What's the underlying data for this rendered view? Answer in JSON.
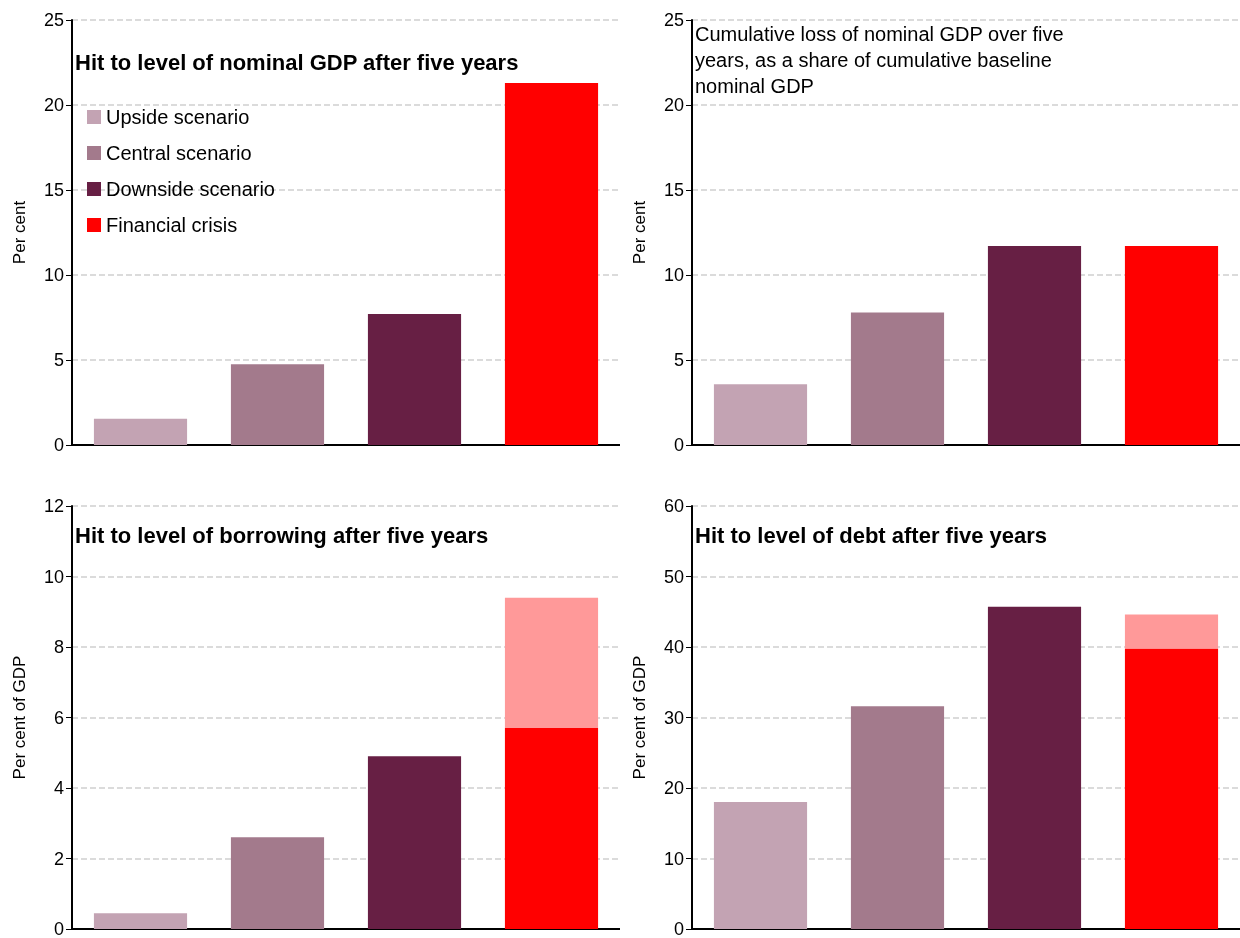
{
  "chart_data": [
    {
      "type": "bar",
      "title": "Hit to level of nominal GDP after five years",
      "ylabel": "Per cent",
      "categories": [
        null,
        null,
        null,
        null
      ],
      "stacked": true,
      "legend": "top left",
      "grid": "y",
      "ylim": [
        0,
        25
      ],
      "yticks": [
        0,
        5,
        10,
        15,
        20,
        25
      ],
      "series": [
        {
          "name": "Upside scenario",
          "color": "#c3a3b3",
          "values": [
            1.54,
            null,
            null,
            null
          ]
        },
        {
          "name": "Central scenario",
          "color": "#a37a8c",
          "values": [
            null,
            4.75,
            null,
            null
          ]
        },
        {
          "name": "Downside scenario",
          "color": "#671f44",
          "values": [
            null,
            null,
            7.7,
            null
          ]
        },
        {
          "name": "Financial crisis",
          "color": "#ff0000",
          "values": [
            null,
            null,
            null,
            21.3
          ]
        }
      ]
    },
    {
      "type": "bar",
      "title": "Cumulative loss of nominal GDP over five years, as a share of cumulative baseline nominal GDP",
      "ylabel": "Per cent",
      "categories": [
        null,
        null,
        null,
        null
      ],
      "grid": "y",
      "ylim": [
        0,
        25
      ],
      "yticks": [
        0,
        5,
        10,
        15,
        20,
        25
      ],
      "series": [
        {
          "colors": [
            "#c3a3b3",
            "#a37a8c",
            "#671f44",
            "#ff0000"
          ],
          "values": [
            3.58,
            7.8,
            11.7,
            11.7
          ]
        }
      ]
    },
    {
      "type": "bar",
      "title": "Hit to level of borrowing after five years",
      "ylabel": "Per cent of GDP",
      "categories": [
        null,
        null,
        null,
        null
      ],
      "stacked": true,
      "grid": "y",
      "ylim": [
        0,
        12
      ],
      "yticks": [
        0,
        2,
        4,
        6,
        8,
        10,
        12
      ],
      "series": [
        {
          "colors": [
            "#c3a3b3",
            "#a37a8c",
            "#671f44",
            "#ff0000"
          ],
          "values": [
            0.45,
            2.6,
            4.9,
            5.7
          ]
        },
        {
          "color": "#ff9999",
          "values": [
            null,
            null,
            null,
            3.7
          ]
        }
      ]
    },
    {
      "type": "bar",
      "title": "Hit to level of debt after five years",
      "ylabel": "Per cent of GDP",
      "categories": [
        null,
        null,
        null,
        null
      ],
      "stacked": true,
      "grid": "y",
      "ylim": [
        0,
        60
      ],
      "yticks": [
        0,
        10,
        20,
        30,
        40,
        50,
        60
      ],
      "series": [
        {
          "colors": [
            "#c3a3b3",
            "#a37a8c",
            "#671f44",
            "#ff0000"
          ],
          "values": [
            18.0,
            31.6,
            45.7,
            39.8
          ]
        },
        {
          "color": "#ff9999",
          "values": [
            null,
            null,
            null,
            4.8
          ]
        }
      ]
    }
  ]
}
